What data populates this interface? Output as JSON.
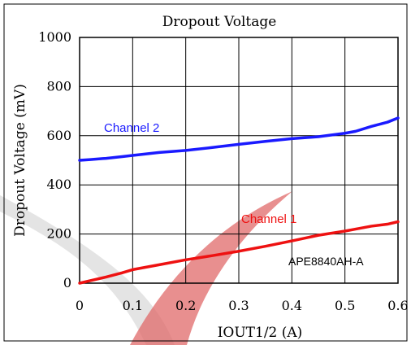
{
  "chart_data": {
    "type": "line",
    "title": "Dropout Voltage",
    "xlabel": "IOUT1/2 (A)",
    "ylabel": "Dropout Voltage (mV)",
    "xlim": [
      0,
      0.6
    ],
    "ylim": [
      0,
      1000
    ],
    "x_ticks": [
      "0",
      "0.1",
      "0.2",
      "0.3",
      "0.4",
      "0.5",
      "0.6"
    ],
    "y_ticks": [
      "0",
      "200",
      "400",
      "600",
      "800",
      "1000"
    ],
    "grid": true,
    "annotation": "APE8840AH-A",
    "series": [
      {
        "name": "Channel 2",
        "color": "#1a1aff",
        "points": [
          [
            0,
            500
          ],
          [
            0.02,
            503
          ],
          [
            0.05,
            508
          ],
          [
            0.08,
            515
          ],
          [
            0.1,
            520
          ],
          [
            0.15,
            532
          ],
          [
            0.2,
            540
          ],
          [
            0.25,
            552
          ],
          [
            0.3,
            565
          ],
          [
            0.35,
            577
          ],
          [
            0.4,
            588
          ],
          [
            0.45,
            596
          ],
          [
            0.5,
            610
          ],
          [
            0.52,
            618
          ],
          [
            0.55,
            638
          ],
          [
            0.58,
            655
          ],
          [
            0.6,
            672
          ]
        ]
      },
      {
        "name": "Channel 1",
        "color": "#ee1111",
        "points": [
          [
            0,
            0
          ],
          [
            0.02,
            10
          ],
          [
            0.05,
            25
          ],
          [
            0.08,
            42
          ],
          [
            0.1,
            55
          ],
          [
            0.15,
            75
          ],
          [
            0.2,
            95
          ],
          [
            0.25,
            112
          ],
          [
            0.3,
            130
          ],
          [
            0.35,
            150
          ],
          [
            0.4,
            172
          ],
          [
            0.45,
            195
          ],
          [
            0.5,
            212
          ],
          [
            0.52,
            220
          ],
          [
            0.55,
            232
          ],
          [
            0.58,
            240
          ],
          [
            0.6,
            250
          ]
        ]
      }
    ]
  }
}
